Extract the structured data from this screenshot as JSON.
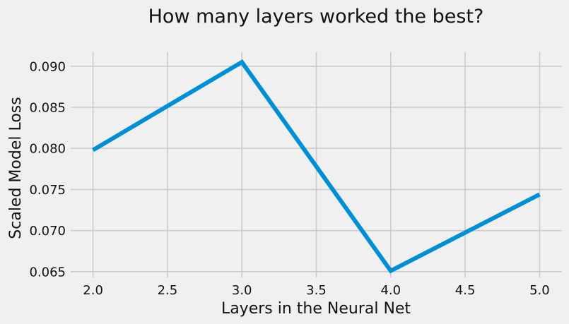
{
  "chart_data": {
    "type": "line",
    "title": "How many layers worked the best?",
    "xlabel": "Layers in the Neural Net",
    "ylabel": "Scaled Model Loss",
    "x": [
      2,
      3,
      4,
      5
    ],
    "series": [
      {
        "values": [
          0.0798,
          0.0905,
          0.0651,
          0.0744
        ]
      }
    ],
    "xlim": [
      1.85,
      5.15
    ],
    "ylim": [
      0.0643,
      0.0917
    ],
    "xticks": [
      2.0,
      2.5,
      3.0,
      3.5,
      4.0,
      4.5,
      5.0
    ],
    "xtick_labels": [
      "2.0",
      "2.5",
      "3.0",
      "3.5",
      "4.0",
      "4.5",
      "5.0"
    ],
    "yticks": [
      0.065,
      0.07,
      0.075,
      0.08,
      0.085,
      0.09
    ],
    "ytick_labels": [
      "0.065",
      "0.070",
      "0.075",
      "0.080",
      "0.085",
      "0.090"
    ],
    "grid": true,
    "legend": false,
    "colors": {
      "background": "#f0f0f0",
      "grid": "#cbcbcb",
      "line": "#008fd5",
      "text": "#111111"
    }
  }
}
